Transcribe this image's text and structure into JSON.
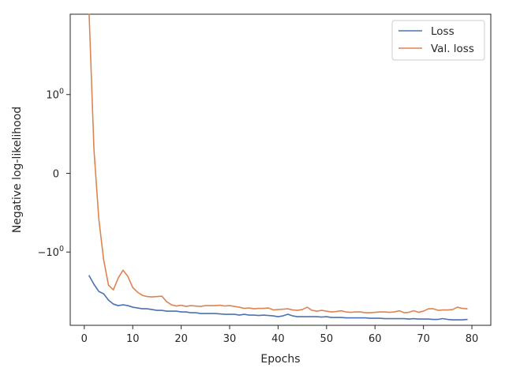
{
  "chart_data": {
    "type": "line",
    "xlabel": "Epochs",
    "ylabel": "Negative log-likelihood",
    "yscale": "symlog",
    "xlim": [
      -2.9,
      83.9
    ],
    "ylim": [
      -1.93,
      2.02
    ],
    "grid": false,
    "legend_position": "top-right",
    "x_ticks": [
      0,
      10,
      20,
      30,
      40,
      50,
      60,
      70,
      80
    ],
    "y_ticks": [
      {
        "value": 1,
        "label": "10",
        "exp": "0"
      },
      {
        "value": 0,
        "label": "0",
        "exp": ""
      },
      {
        "value": -1,
        "label": "−10",
        "exp": "0"
      }
    ],
    "series": [
      {
        "name": "Loss",
        "color": "#4c72b0",
        "x": [
          1,
          2,
          3,
          4,
          5,
          6,
          7,
          8,
          9,
          10,
          11,
          12,
          13,
          14,
          15,
          16,
          17,
          18,
          19,
          20,
          21,
          22,
          23,
          24,
          25,
          26,
          27,
          28,
          29,
          30,
          31,
          32,
          33,
          34,
          35,
          36,
          37,
          38,
          39,
          40,
          41,
          42,
          43,
          44,
          45,
          46,
          47,
          48,
          49,
          50,
          51,
          52,
          53,
          54,
          55,
          56,
          57,
          58,
          59,
          60,
          61,
          62,
          63,
          64,
          65,
          66,
          67,
          68,
          69,
          70,
          71,
          72,
          73,
          74,
          75,
          76,
          77,
          78,
          79
        ],
        "y": [
          -1.3,
          -1.41,
          -1.5,
          -1.53,
          -1.61,
          -1.66,
          -1.68,
          -1.67,
          -1.68,
          -1.7,
          -1.71,
          -1.72,
          -1.72,
          -1.73,
          -1.74,
          -1.74,
          -1.75,
          -1.75,
          -1.75,
          -1.76,
          -1.76,
          -1.77,
          -1.77,
          -1.78,
          -1.78,
          -1.78,
          -1.78,
          -1.785,
          -1.79,
          -1.79,
          -1.79,
          -1.8,
          -1.79,
          -1.8,
          -1.8,
          -1.805,
          -1.8,
          -1.805,
          -1.81,
          -1.82,
          -1.81,
          -1.79,
          -1.81,
          -1.82,
          -1.82,
          -1.82,
          -1.82,
          -1.82,
          -1.825,
          -1.82,
          -1.83,
          -1.83,
          -1.83,
          -1.835,
          -1.835,
          -1.835,
          -1.835,
          -1.835,
          -1.84,
          -1.84,
          -1.84,
          -1.845,
          -1.845,
          -1.845,
          -1.845,
          -1.845,
          -1.85,
          -1.845,
          -1.85,
          -1.85,
          -1.85,
          -1.855,
          -1.855,
          -1.845,
          -1.855,
          -1.86,
          -1.86,
          -1.86,
          -1.855
        ]
      },
      {
        "name": "Val. loss",
        "color": "#dd8452",
        "x": [
          1,
          2,
          3,
          4,
          5,
          6,
          7,
          8,
          9,
          10,
          11,
          12,
          13,
          14,
          15,
          16,
          17,
          18,
          19,
          20,
          21,
          22,
          23,
          24,
          25,
          26,
          27,
          28,
          29,
          30,
          31,
          32,
          33,
          34,
          35,
          36,
          37,
          38,
          39,
          40,
          41,
          42,
          43,
          44,
          45,
          46,
          47,
          48,
          49,
          50,
          51,
          52,
          53,
          54,
          55,
          56,
          57,
          58,
          59,
          60,
          61,
          62,
          63,
          64,
          65,
          66,
          67,
          68,
          69,
          70,
          71,
          72,
          73,
          74,
          75,
          76,
          77,
          78,
          79
        ],
        "y": [
          2.02,
          0.3,
          -0.58,
          -1.1,
          -1.42,
          -1.48,
          -1.33,
          -1.23,
          -1.31,
          -1.45,
          -1.51,
          -1.55,
          -1.565,
          -1.57,
          -1.565,
          -1.56,
          -1.63,
          -1.67,
          -1.685,
          -1.675,
          -1.69,
          -1.68,
          -1.685,
          -1.69,
          -1.68,
          -1.68,
          -1.68,
          -1.675,
          -1.685,
          -1.68,
          -1.69,
          -1.7,
          -1.715,
          -1.71,
          -1.72,
          -1.715,
          -1.715,
          -1.71,
          -1.735,
          -1.73,
          -1.725,
          -1.72,
          -1.735,
          -1.74,
          -1.73,
          -1.7,
          -1.74,
          -1.75,
          -1.74,
          -1.75,
          -1.76,
          -1.755,
          -1.745,
          -1.76,
          -1.765,
          -1.76,
          -1.76,
          -1.77,
          -1.77,
          -1.765,
          -1.76,
          -1.76,
          -1.765,
          -1.76,
          -1.745,
          -1.77,
          -1.765,
          -1.745,
          -1.765,
          -1.75,
          -1.72,
          -1.72,
          -1.74,
          -1.735,
          -1.735,
          -1.73,
          -1.7,
          -1.715,
          -1.72
        ]
      }
    ]
  }
}
